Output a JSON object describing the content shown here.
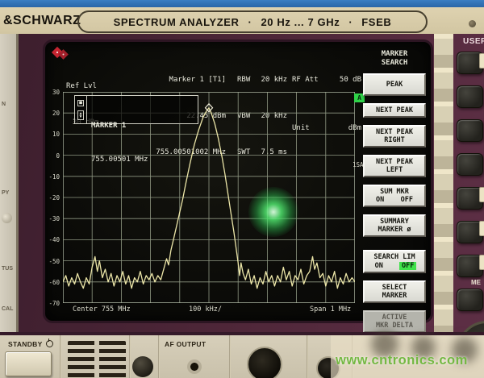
{
  "banner": {
    "brand": "&SCHWARZ",
    "title": "SPECTRUM ANALYZER",
    "separator": "·",
    "freq_range": "20 Hz ... 7 GHz",
    "model": "FSEB",
    "user_key_label": "USER"
  },
  "screen": {
    "header": {
      "ref_lvl_label": "Ref Lvl",
      "ref_lvl_value": "30 dBm",
      "marker_title": "Marker 1 [T1]",
      "marker_level": "22.45 dBm",
      "marker_freq": "755.00501002 MHz",
      "rbw_label": "RBW",
      "rbw_value": "20 kHz",
      "vbw_label": "VBW",
      "vbw_value": "20 kHz",
      "swt_label": "SWT",
      "swt_value": "7.5 ms",
      "rf_att_label": "RF Att",
      "rf_att_value": "50 dB",
      "unit_label": "Unit",
      "unit_value": "dBm"
    },
    "marker_readout": {
      "square_icon": "■",
      "up_icon": "▲",
      "down_icon": "▼",
      "line1": "MARKER 1",
      "line2": "755.00501 MHz"
    },
    "edge_annotations": {
      "trace_flag": "A",
      "trace_detector": "1SA"
    },
    "footer": {
      "center": "Center 755 MHz",
      "per_div": "100 kHz/",
      "span": "Span 1 MHz"
    },
    "colors": {
      "trace": "#ece6a8",
      "grid": "#8f9883",
      "grid_border": "#aab3a0",
      "text": "#e8e8dc",
      "flag_green": "#2fd349",
      "toggle_green": "#3fe24a",
      "laser_dot": "#42e060",
      "bezel_maroon": "#4f2739",
      "panel_beige": "#d2c6a2",
      "watermark_green": "#74b843"
    }
  },
  "softkeys": {
    "title_line1": "MARKER",
    "title_line2": "SEARCH",
    "keys": [
      {
        "lines": [
          "PEAK"
        ],
        "style": "raised"
      },
      {
        "lines": [
          "NEXT PEAK"
        ]
      },
      {
        "lines": [
          "NEXT PEAK",
          "RIGHT"
        ]
      },
      {
        "lines": [
          "NEXT PEAK",
          "LEFT"
        ]
      },
      {
        "lines": [
          "SUM MKR",
          "ON    OFF"
        ]
      },
      {
        "lines": [
          "SUMMARY",
          "MARKER ø"
        ]
      },
      {
        "lines": [
          "SEARCH LIM"
        ],
        "toggle": {
          "on": "ON",
          "off": "OFF",
          "active": "off"
        }
      },
      {
        "lines": [
          "SELECT",
          "MARKER"
        ]
      },
      {
        "lines": [
          "ACTIVE",
          "MKR DELTA"
        ],
        "style": "dim"
      }
    ]
  },
  "chart_data": {
    "type": "line",
    "title": "",
    "xlabel": "Center 755 MHz, 100 kHz/div, Span 1 MHz",
    "ylabel": "dBm (Ref Lvl 30 dBm, 10 dB/div)",
    "xlim": [
      0,
      10
    ],
    "ylim": [
      -70,
      30
    ],
    "y_ticks": [
      30,
      20,
      10,
      0,
      -10,
      -20,
      -30,
      -40,
      -50,
      -60,
      -70
    ],
    "grid_divisions": {
      "x": 10,
      "y": 10
    },
    "grid": true,
    "marker": {
      "x": 5.0,
      "y": 22.45,
      "shape": "diamond",
      "label": "MARKER 1",
      "freq": "755.00501 MHz"
    },
    "series": [
      {
        "name": "Trace 1 (1SA)",
        "points": [
          [
            0,
            -60
          ],
          [
            0.1,
            -57
          ],
          [
            0.2,
            -62
          ],
          [
            0.3,
            -58
          ],
          [
            0.4,
            -61
          ],
          [
            0.5,
            -56
          ],
          [
            0.6,
            -60
          ],
          [
            0.7,
            -63
          ],
          [
            0.8,
            -58
          ],
          [
            0.9,
            -61
          ],
          [
            1.0,
            -53
          ],
          [
            1.1,
            -48
          ],
          [
            1.18,
            -55
          ],
          [
            1.25,
            -50
          ],
          [
            1.35,
            -58
          ],
          [
            1.45,
            -54
          ],
          [
            1.55,
            -60
          ],
          [
            1.65,
            -56
          ],
          [
            1.75,
            -62
          ],
          [
            1.85,
            -57
          ],
          [
            1.95,
            -60
          ],
          [
            2.05,
            -55
          ],
          [
            2.15,
            -61
          ],
          [
            2.25,
            -57
          ],
          [
            2.35,
            -63
          ],
          [
            2.45,
            -58
          ],
          [
            2.55,
            -60
          ],
          [
            2.65,
            -55
          ],
          [
            2.75,
            -61
          ],
          [
            2.85,
            -57
          ],
          [
            2.95,
            -59
          ],
          [
            3.05,
            -56
          ],
          [
            3.15,
            -60
          ],
          [
            3.25,
            -57
          ],
          [
            3.35,
            -59
          ],
          [
            3.45,
            -54
          ],
          [
            3.55,
            -49
          ],
          [
            3.62,
            -52
          ],
          [
            3.7,
            -45
          ],
          [
            3.8,
            -39
          ],
          [
            3.9,
            -33
          ],
          [
            4.0,
            -27
          ],
          [
            4.1,
            -21
          ],
          [
            4.2,
            -14
          ],
          [
            4.35,
            -4
          ],
          [
            4.5,
            5
          ],
          [
            4.65,
            12
          ],
          [
            4.8,
            18
          ],
          [
            4.92,
            21
          ],
          [
            5.0,
            22.45
          ],
          [
            5.08,
            20
          ],
          [
            5.2,
            15
          ],
          [
            5.32,
            8
          ],
          [
            5.45,
            -1
          ],
          [
            5.55,
            -9
          ],
          [
            5.65,
            -18
          ],
          [
            5.75,
            -27
          ],
          [
            5.85,
            -36
          ],
          [
            5.93,
            -44
          ],
          [
            6.0,
            -51
          ],
          [
            6.05,
            -57
          ],
          [
            6.1,
            -51
          ],
          [
            6.17,
            -56
          ],
          [
            6.25,
            -59
          ],
          [
            6.35,
            -54
          ],
          [
            6.45,
            -61
          ],
          [
            6.55,
            -57
          ],
          [
            6.65,
            -63
          ],
          [
            6.75,
            -58
          ],
          [
            6.85,
            -61
          ],
          [
            6.95,
            -55
          ],
          [
            7.05,
            -60
          ],
          [
            7.15,
            -57
          ],
          [
            7.25,
            -62
          ],
          [
            7.35,
            -57
          ],
          [
            7.45,
            -60
          ],
          [
            7.55,
            -53
          ],
          [
            7.65,
            -59
          ],
          [
            7.75,
            -55
          ],
          [
            7.85,
            -62
          ],
          [
            7.95,
            -57
          ],
          [
            8.05,
            -59
          ],
          [
            8.15,
            -54
          ],
          [
            8.25,
            -61
          ],
          [
            8.35,
            -57
          ],
          [
            8.45,
            -55
          ],
          [
            8.55,
            -48
          ],
          [
            8.62,
            -54
          ],
          [
            8.7,
            -51
          ],
          [
            8.8,
            -58
          ],
          [
            8.9,
            -56
          ],
          [
            9.0,
            -62
          ],
          [
            9.1,
            -57
          ],
          [
            9.2,
            -60
          ],
          [
            9.3,
            -55
          ],
          [
            9.4,
            -63
          ],
          [
            9.5,
            -58
          ],
          [
            9.6,
            -61
          ],
          [
            9.7,
            -56
          ],
          [
            9.8,
            -60
          ],
          [
            9.9,
            -58
          ],
          [
            10,
            -60
          ]
        ]
      }
    ]
  },
  "hardware": {
    "left_panel_fragments": [
      "N",
      "PY",
      "TUS",
      "CAL"
    ],
    "right_fragment": "ME",
    "standby_label": "STANDBY",
    "power_icon": "power-symbol",
    "af_output_label": "AF OUTPUT",
    "watermark": "www.cntronics.com"
  }
}
